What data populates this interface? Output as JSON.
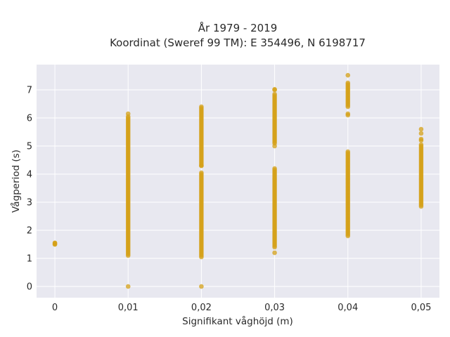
{
  "chart_data": {
    "type": "scatter",
    "title_line1": "År 1979 - 2019",
    "title_line2": "Koordinat (Sweref 99 TM): E 354496, N 6198717",
    "xlabel": "Signifikant våghöjd (m)",
    "ylabel": "Vågperiod (s)",
    "x_ticks": [
      "0",
      "0,01",
      "0,02",
      "0,03",
      "0,04",
      "0,05"
    ],
    "x_tick_values": [
      0,
      0.01,
      0.02,
      0.03,
      0.04,
      0.05
    ],
    "y_ticks": [
      "0",
      "1",
      "2",
      "3",
      "4",
      "5",
      "6",
      "7"
    ],
    "y_tick_values": [
      0,
      1,
      2,
      3,
      4,
      5,
      6,
      7
    ],
    "xlim": [
      -0.0025,
      0.0525
    ],
    "ylim": [
      -0.4,
      7.9
    ],
    "grid": true,
    "colors": {
      "marker": "#d4a017",
      "plot_bg": "#e8e8f0",
      "grid": "#ffffff"
    },
    "point_groups": [
      {
        "x": 0,
        "y_range": [
          1.5,
          1.56
        ],
        "extra_y": [
          1.5,
          1.55
        ]
      },
      {
        "x": 0.01,
        "y_range": [
          1.1,
          6.0
        ],
        "extra_y": [
          0,
          6.05,
          6.15
        ]
      },
      {
        "x": 0.02,
        "y_range": [
          1.05,
          4.0
        ],
        "extra_y": [
          0,
          4.05,
          4.3
        ]
      },
      {
        "x": 0.02,
        "y_range": [
          4.3,
          6.4
        ],
        "extra_y": []
      },
      {
        "x": 0.03,
        "y_range": [
          1.4,
          4.2
        ],
        "extra_y": [
          1.2
        ]
      },
      {
        "x": 0.03,
        "y_range": [
          5.1,
          6.85
        ],
        "extra_y": [
          5.0,
          7.0,
          7.02
        ]
      },
      {
        "x": 0.04,
        "y_range": [
          1.8,
          4.8
        ],
        "extra_y": [
          6.1,
          6.15
        ]
      },
      {
        "x": 0.04,
        "y_range": [
          6.4,
          7.25
        ],
        "extra_y": [
          7.52
        ]
      },
      {
        "x": 0.05,
        "y_range": [
          2.85,
          5.05
        ],
        "extra_y": [
          5.2,
          5.25,
          5.45,
          5.6
        ]
      }
    ]
  }
}
